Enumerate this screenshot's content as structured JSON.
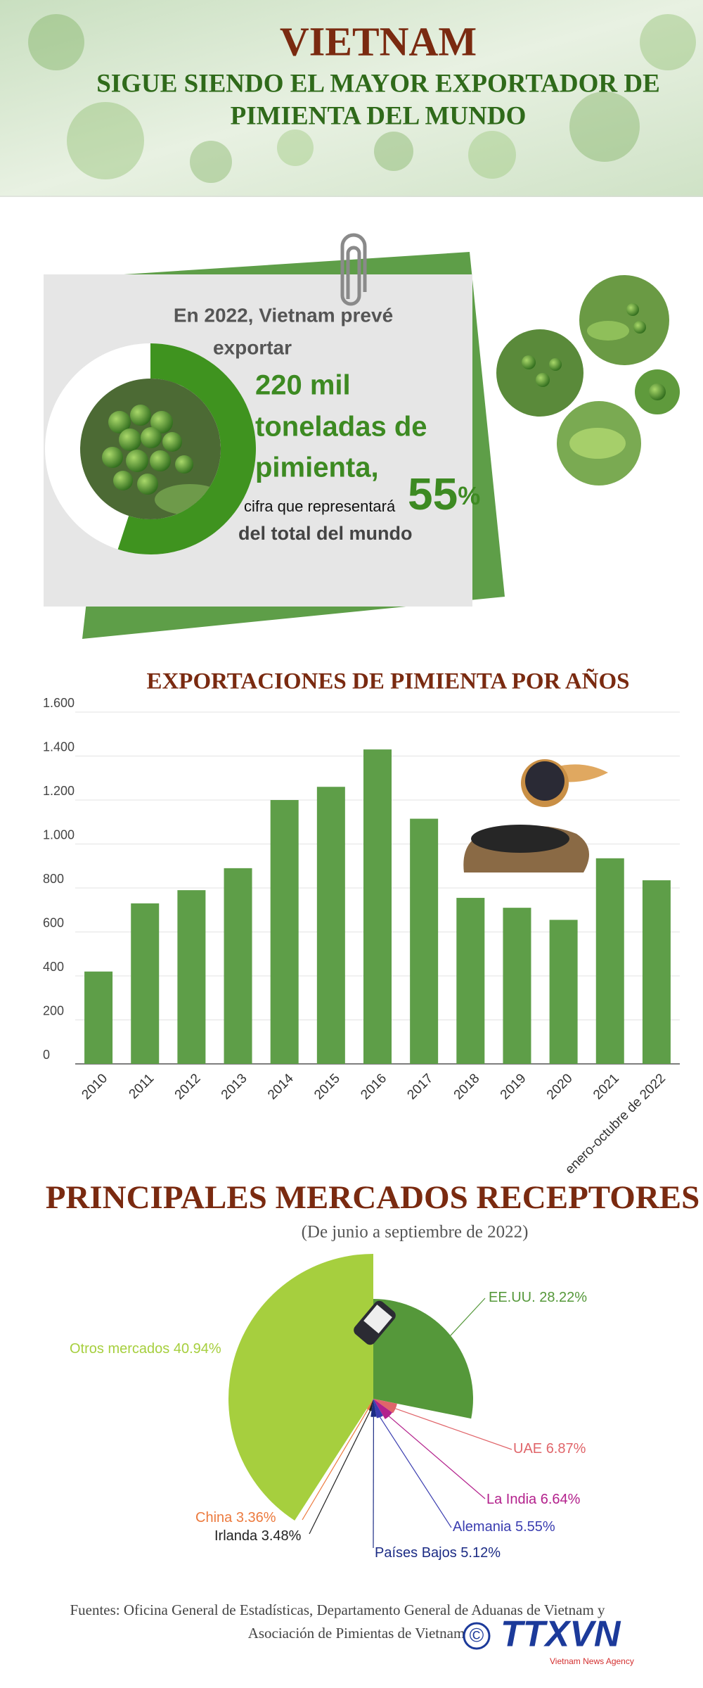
{
  "header": {
    "title": "VIETNAM",
    "subtitle": [
      "SIGUE SIENDO EL MAYOR EXPORTADOR DE",
      "PIMIENTA DEL MUNDO"
    ]
  },
  "highlight": {
    "intro": [
      "En 2022, Vietnam prevé",
      "exportar"
    ],
    "amount": [
      "220 mil",
      "toneladas de",
      "pimienta,"
    ],
    "note": "cifra que representará",
    "share": 55,
    "share_unit": "%",
    "tail": "del total del mundo"
  },
  "chart_data": [
    {
      "type": "bar",
      "title": "EXPORTACIONES DE PIMIENTA POR AÑOS",
      "categories": [
        "2010",
        "2011",
        "2012",
        "2013",
        "2014",
        "2015",
        "2016",
        "2017",
        "2018",
        "2019",
        "2020",
        "2021",
        "enero-octubre de 2022"
      ],
      "values": [
        420,
        730,
        790,
        890,
        1200,
        1260,
        1430,
        1115,
        755,
        710,
        655,
        935,
        835
      ],
      "color": "#5e9e48",
      "ylim": [
        0,
        1600
      ],
      "yticks": [
        0,
        200,
        400,
        600,
        800,
        {
          "value": 1000,
          "label": "1.000"
        },
        {
          "value": 1200,
          "label": "1.200"
        },
        {
          "value": 1400,
          "label": "1.400"
        },
        {
          "value": 1600,
          "label": "1.600"
        }
      ],
      "grid": true
    },
    {
      "type": "pie",
      "title": "PRINCIPALES MERCADOS RECEPTORES",
      "subtitle": "(De junio a septiembre de 2022)",
      "categories": [
        "EE.UU.",
        "UAE",
        "La India",
        "Alemania",
        "Países Bajos",
        "Irlanda",
        "China",
        "Otros mercados"
      ],
      "values": [
        28.22,
        6.87,
        6.64,
        5.55,
        5.12,
        3.48,
        3.36,
        40.94
      ],
      "value_labels": [
        "28.22%",
        "6.87%",
        "6.64%",
        "5.55%",
        "5.12%",
        "3.48%",
        "3.36%",
        "40.94%"
      ],
      "colors": [
        "#55983a",
        "#e0656a",
        "#b3218c",
        "#3a3db0",
        "#1c2c85",
        "#222222",
        "#ec7a3e",
        "#a6cf3e"
      ]
    }
  ],
  "footer": {
    "sources": [
      "Fuentes: Oficina General de Estadísticas, Departamento General de Aduanas de Vietnam y",
      "Asociación de Pimientas de Vietnam"
    ],
    "copyright": "©",
    "logo": "TTXVN",
    "tagline": "Vietnam News Agency"
  }
}
